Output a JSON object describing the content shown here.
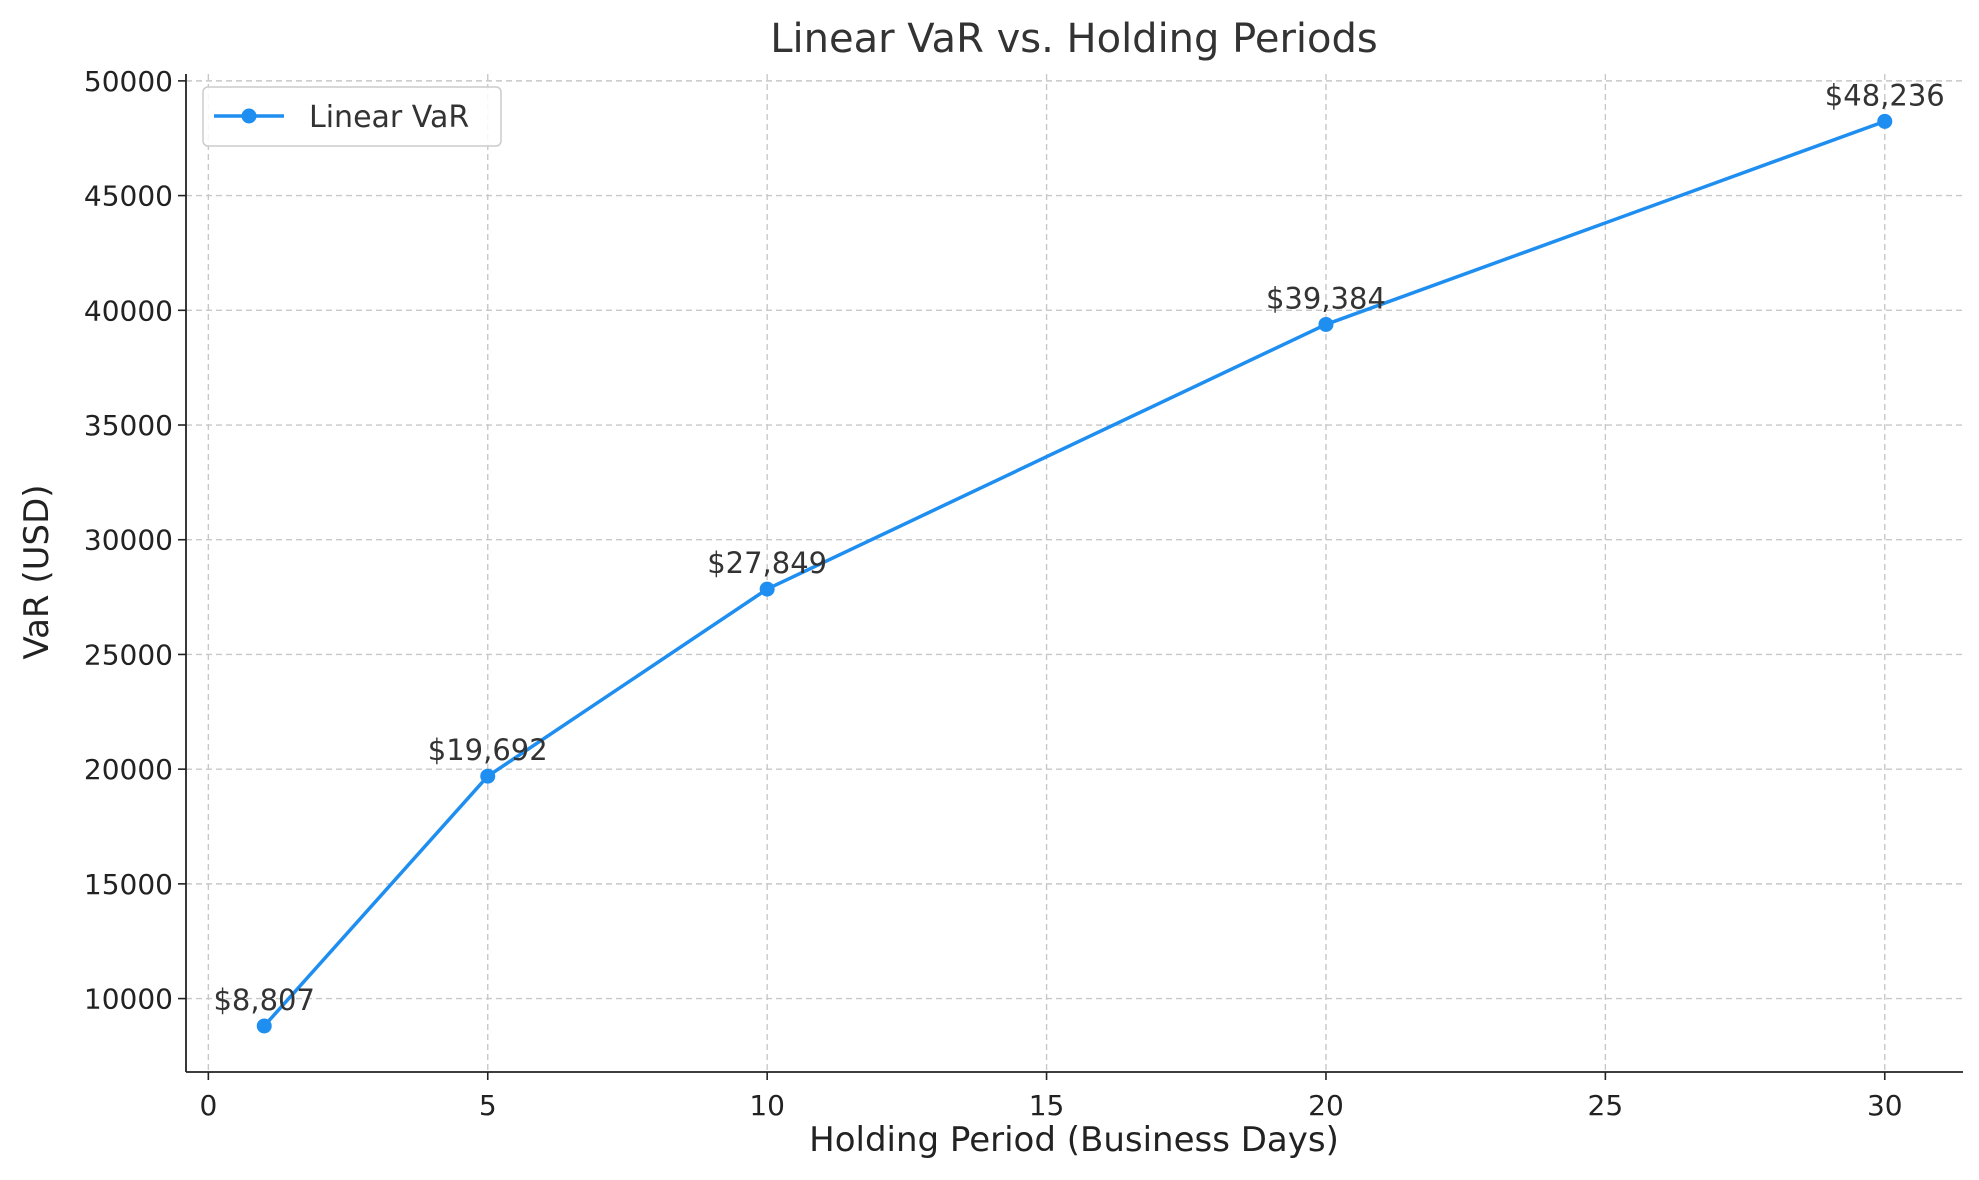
{
  "chart_data": {
    "type": "line",
    "title": "Linear VaR vs. Holding Periods",
    "xlabel": "Holding Period (Business Days)",
    "ylabel": "VaR (USD)",
    "xlim": [
      -0.4,
      31.4
    ],
    "ylim": [
      6800,
      50300
    ],
    "xticks": [
      0,
      5,
      10,
      15,
      20,
      25,
      30
    ],
    "yticks": [
      10000,
      15000,
      20000,
      25000,
      30000,
      35000,
      40000,
      45000,
      50000
    ],
    "grid": true,
    "legend_position": "top-left",
    "series": [
      {
        "name": "Linear VaR",
        "color": "#1f8ef1",
        "marker": "circle",
        "x": [
          1,
          5,
          10,
          20,
          30
        ],
        "y": [
          8807,
          19692,
          27849,
          39384,
          48236
        ],
        "data_labels": [
          "$8,807",
          "$19,692",
          "$27,849",
          "$39,384",
          "$48,236"
        ]
      }
    ]
  }
}
